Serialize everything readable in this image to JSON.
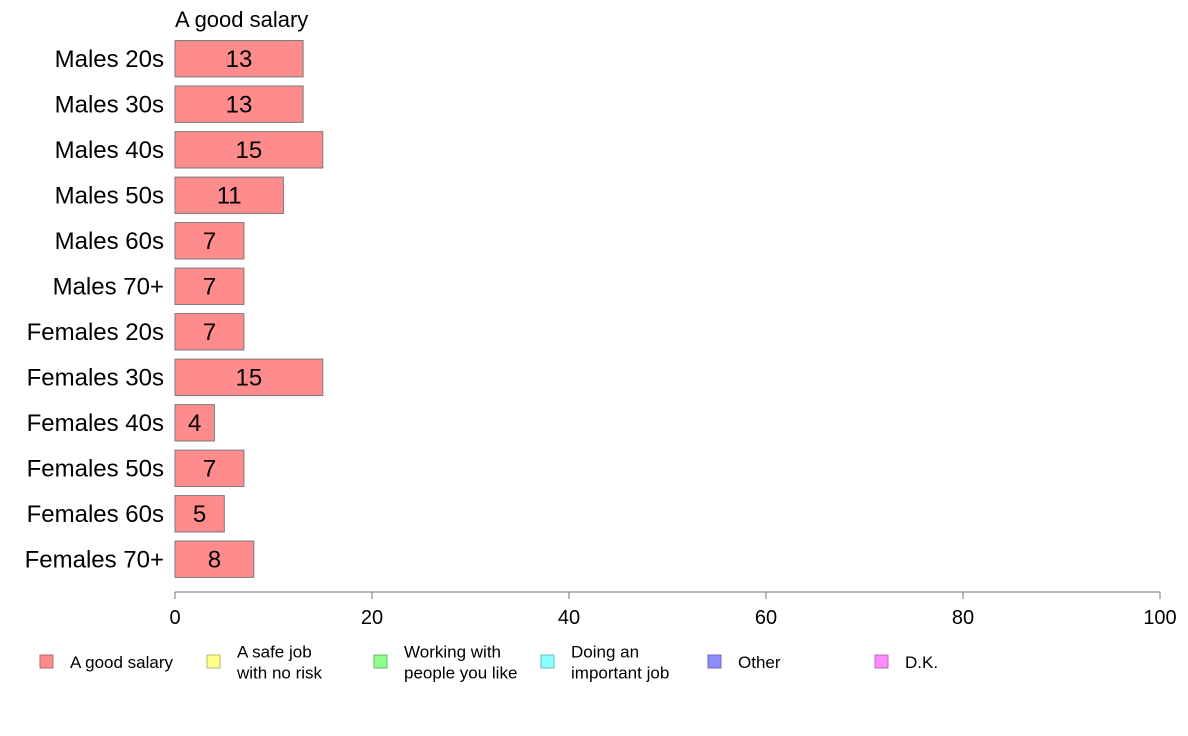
{
  "chart_data": {
    "type": "bar",
    "orientation": "horizontal",
    "title": "A good salary",
    "xlim": [
      0,
      100
    ],
    "xticks": [
      0,
      20,
      40,
      60,
      80,
      100
    ],
    "grid": false,
    "legend_position": "bottom",
    "categories": [
      "Males 20s",
      "Males 30s",
      "Males 40s",
      "Males 50s",
      "Males 60s",
      "Males 70+",
      "Females 20s",
      "Females 30s",
      "Females 40s",
      "Females 50s",
      "Females 60s",
      "Females 70+"
    ],
    "series": [
      {
        "name": "A good salary",
        "values": [
          13,
          13,
          15,
          11,
          7,
          7,
          7,
          15,
          4,
          7,
          5,
          8
        ],
        "color": "#ff8c8c"
      }
    ],
    "legend": [
      {
        "label": [
          "A good salary"
        ],
        "color": "#ff8c8c",
        "stroke": "#b86a6a"
      },
      {
        "label": [
          "A safe job",
          "with no risk"
        ],
        "color": "#ffff8c",
        "stroke": "#b8b86a"
      },
      {
        "label": [
          "Working with",
          "people you like"
        ],
        "color": "#8cff8c",
        "stroke": "#6ab86a"
      },
      {
        "label": [
          "Doing an",
          "important job"
        ],
        "color": "#8cffff",
        "stroke": "#6ab8b8"
      },
      {
        "label": [
          "Other"
        ],
        "color": "#8c8cff",
        "stroke": "#6a6ab8"
      },
      {
        "label": [
          "D.K."
        ],
        "color": "#ff8cff",
        "stroke": "#b86ab8"
      }
    ]
  }
}
